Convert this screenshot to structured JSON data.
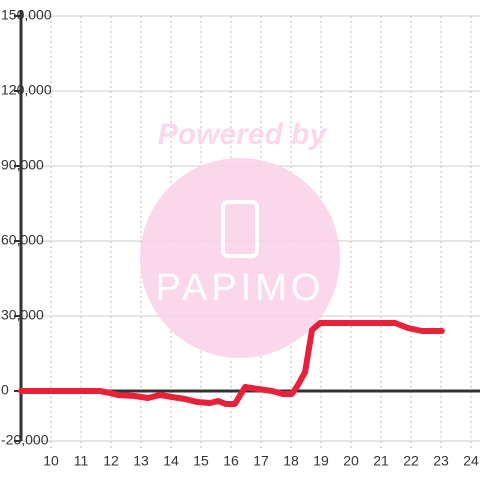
{
  "chart_data": {
    "type": "line",
    "watermark": {
      "text": "Powered by",
      "logo": "PAPIMO"
    },
    "x": [
      9,
      11.63,
      11.97,
      12.23,
      12.8,
      13.23,
      13.63,
      14.03,
      14.47,
      14.87,
      15.3,
      15.57,
      15.83,
      16.13,
      16.47,
      16.9,
      17.37,
      17.73,
      18.03,
      18.23,
      18.47,
      18.7,
      18.97,
      19.63,
      21.47,
      21.9,
      22.37,
      23.03
    ],
    "series": [
      {
        "color": "#e8203a",
        "values": [
          0,
          0,
          -800,
          -1600,
          -2000,
          -2800,
          -1600,
          -2400,
          -3200,
          -4400,
          -4800,
          -4000,
          -5200,
          -5200,
          1600,
          800,
          0,
          -1200,
          -1200,
          2400,
          7600,
          24400,
          27200,
          27200,
          27200,
          25200,
          24000,
          24000
        ]
      }
    ],
    "xlim": [
      9,
      24.3
    ],
    "xticks": [
      10,
      11,
      12,
      13,
      14,
      15,
      16,
      17,
      18,
      19,
      20,
      21,
      22,
      23,
      24
    ],
    "ylim": [
      -20000,
      150000
    ],
    "yticks": [
      {
        "value": -20000,
        "label": "-20,000"
      },
      0,
      {
        "value": 30000,
        "label": "30,000"
      },
      {
        "value": 60000,
        "label": "60,000"
      },
      {
        "value": 90000,
        "label": "90,000"
      },
      {
        "value": 120000,
        "label": "120,000"
      },
      {
        "value": 150000,
        "label": "150,000"
      }
    ],
    "grid": true
  }
}
